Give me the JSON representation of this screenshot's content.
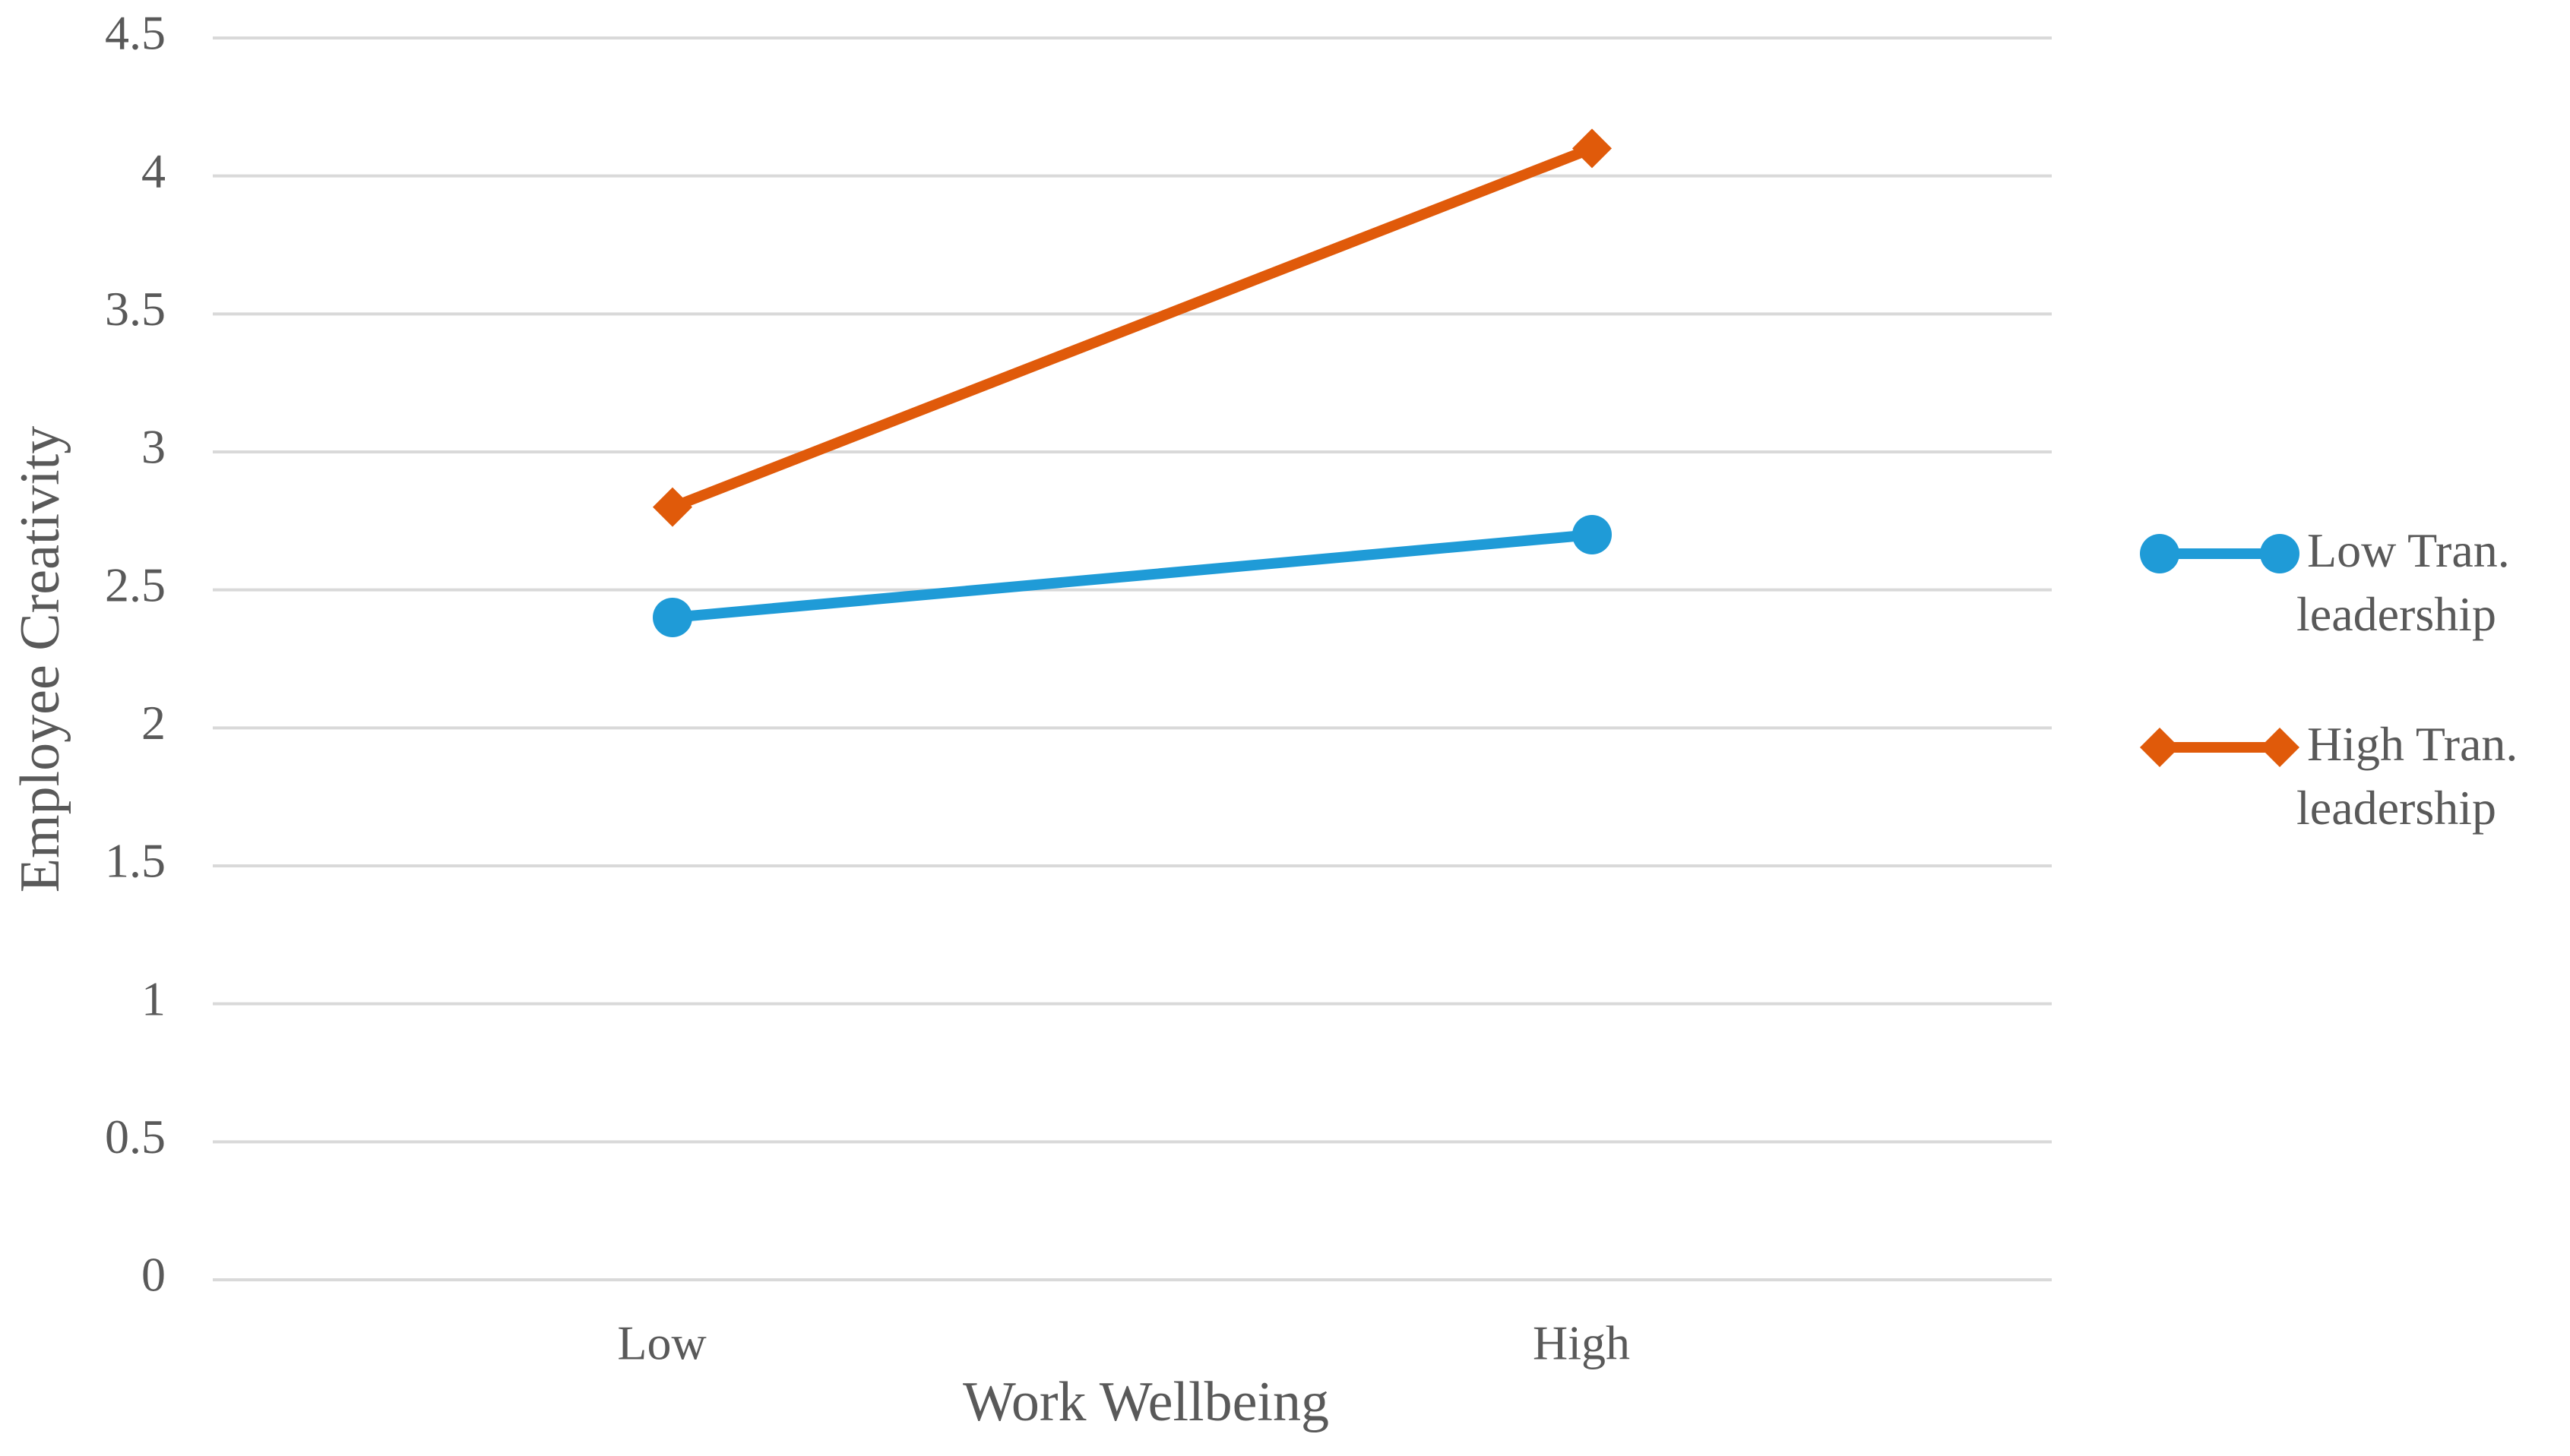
{
  "chart_data": {
    "type": "line",
    "categories": [
      "Low",
      "High"
    ],
    "series": [
      {
        "name": "Low Tran. leadership",
        "color": "#1f9bd7",
        "marker": "circle",
        "values": [
          2.4,
          2.7
        ]
      },
      {
        "name": "High Tran. leadership",
        "color": "#e05a0a",
        "marker": "diamond",
        "values": [
          2.8,
          4.1
        ]
      }
    ],
    "xlabel": "Work Wellbeing",
    "ylabel": "Employee Creativity",
    "ylim": [
      0,
      4.5
    ],
    "yticks": [
      0,
      0.5,
      1,
      1.5,
      2,
      2.5,
      3,
      3.5,
      4,
      4.5
    ],
    "grid": true,
    "legend": "right"
  }
}
